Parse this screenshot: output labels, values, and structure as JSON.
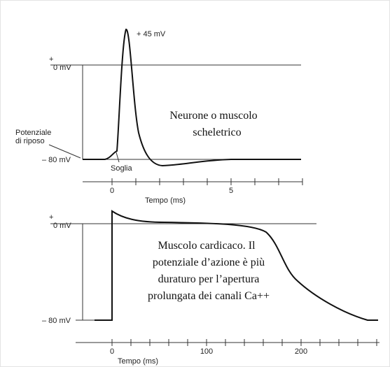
{
  "top": {
    "plus": "+",
    "zero": "0 mV",
    "peak": "+ 45 mV",
    "rest": [
      "Potenziale",
      "di riposo"
    ],
    "minus80": "– 80 mV",
    "threshold": "Soglia",
    "ticks": [
      "0",
      "5"
    ],
    "xlabel": "Tempo (ms)",
    "caption": [
      "Neurone o muscolo",
      "scheletrico"
    ]
  },
  "bottom": {
    "plus": "+",
    "zero": "0 mV",
    "minus80": "– 80 mV",
    "ticks": [
      "0",
      "100",
      "200"
    ],
    "xlabel": "Tempo (ms)",
    "caption": [
      "Muscolo cardicaco. Il",
      "potenziale d’azione è più",
      "duraturo per l’apertura",
      "prolungata dei canali Ca++"
    ]
  }
}
